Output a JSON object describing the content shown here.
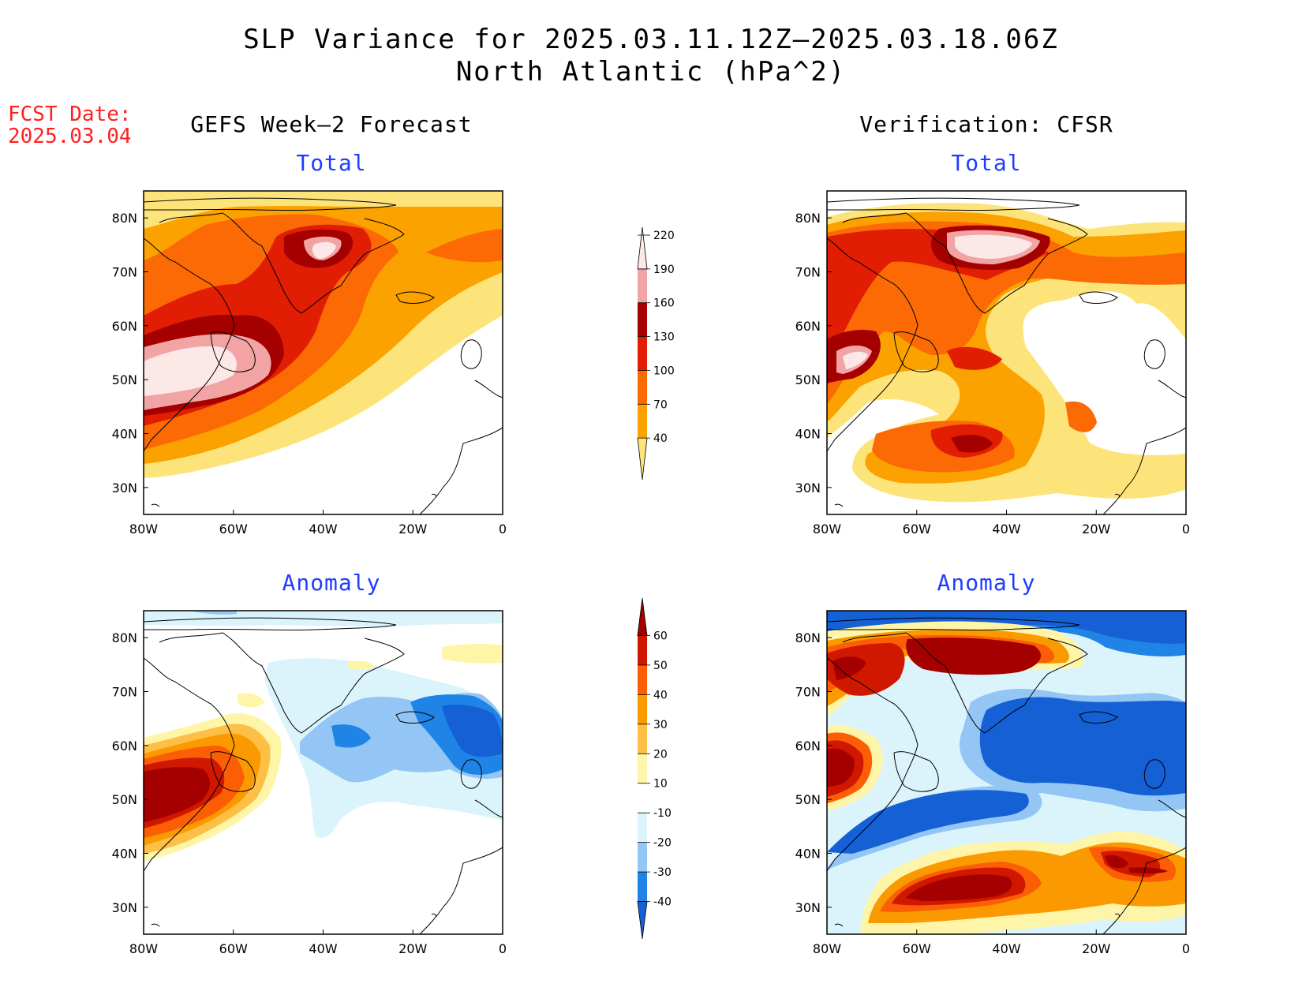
{
  "header": {
    "title_line1": "SLP Variance for 2025.03.11.12Z–2025.03.18.06Z",
    "title_line2": "North Atlantic (hPa^2)"
  },
  "forecast_date": {
    "label": "FCST Date:",
    "value": "2025.03.04"
  },
  "columns": {
    "left": "GEFS Week–2 Forecast",
    "right": "Verification: CFSR"
  },
  "panels": {
    "total_label": "Total",
    "anomaly_label": "Anomaly"
  },
  "axes": {
    "lat_labels": [
      "80N",
      "70N",
      "60N",
      "50N",
      "40N",
      "30N"
    ],
    "lat_values": [
      80,
      70,
      60,
      50,
      40,
      30
    ],
    "lon_labels": [
      "80W",
      "60W",
      "40W",
      "20W",
      "0"
    ],
    "lon_values": [
      -80,
      -60,
      -40,
      -20,
      0
    ],
    "lat_range": [
      25,
      85
    ],
    "lon_range": [
      -80,
      0
    ]
  },
  "colorbars": {
    "total": {
      "levels": [
        "40",
        "70",
        "100",
        "130",
        "160",
        "190",
        "220"
      ],
      "colors": [
        "#fde47a",
        "#fba100",
        "#fb6a04",
        "#e11d04",
        "#a50000",
        "#f2a4a4",
        "#fde8e8"
      ]
    },
    "anomaly": {
      "levels": [
        "-40",
        "-30",
        "-20",
        "-10",
        "10",
        "20",
        "30",
        "40",
        "50",
        "60"
      ],
      "colors": [
        "#1460d4",
        "#1f84e6",
        "#93c6f5",
        "#dbf4fb",
        "#ffffff",
        "#fff5a8",
        "#fdbf45",
        "#fb9a00",
        "#fb5e05",
        "#d01800",
        "#a50000"
      ]
    }
  }
}
